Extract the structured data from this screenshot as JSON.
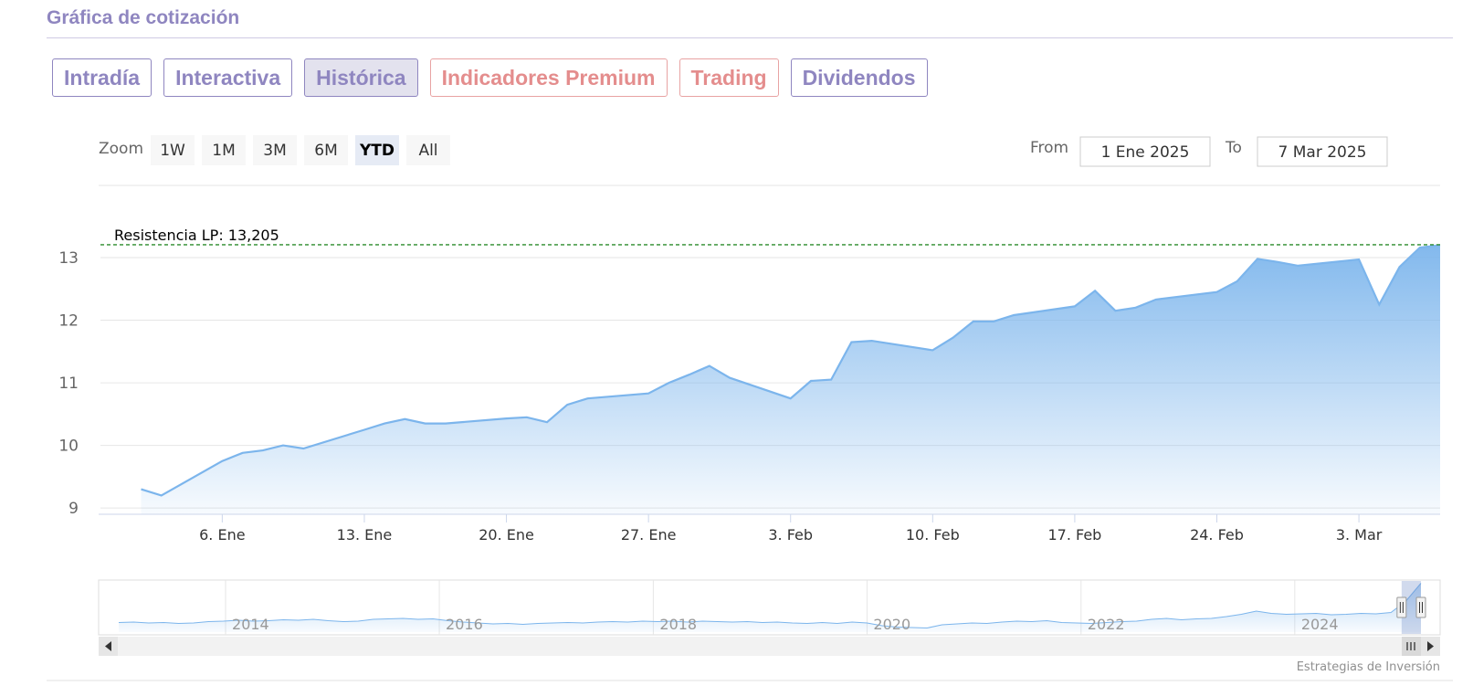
{
  "header": {
    "title": "Gráfica de cotización"
  },
  "tabs": [
    {
      "label": "Intradía",
      "state": "normal"
    },
    {
      "label": "Interactiva",
      "state": "normal"
    },
    {
      "label": "Histórica",
      "state": "active"
    },
    {
      "label": "Indicadores Premium",
      "state": "premium"
    },
    {
      "label": "Trading",
      "state": "premium"
    },
    {
      "label": "Dividendos",
      "state": "normal"
    }
  ],
  "range_selector": {
    "zoom_label": "Zoom",
    "buttons": [
      "1W",
      "1M",
      "3M",
      "6M",
      "YTD",
      "All"
    ],
    "selected": "YTD",
    "from_label": "From",
    "from_value": "1 Ene 2025",
    "to_label": "To",
    "to_value": "7 Mar 2025"
  },
  "colors": {
    "accent": "#8f86c0",
    "premium": "#e48d8d",
    "series_line": "#7cb5ec",
    "resistance_line": "#2a8a2a"
  },
  "credits": "Estrategias de Inversión",
  "chart_data": {
    "type": "area",
    "series": [
      {
        "x": [
          "2025-01-02",
          "2025-01-03",
          "2025-01-06",
          "2025-01-07",
          "2025-01-08",
          "2025-01-09",
          "2025-01-10",
          "2025-01-13",
          "2025-01-14",
          "2025-01-15",
          "2025-01-16",
          "2025-01-17",
          "2025-01-20",
          "2025-01-21",
          "2025-01-22",
          "2025-01-23",
          "2025-01-24",
          "2025-01-27",
          "2025-01-28",
          "2025-01-29",
          "2025-01-30",
          "2025-01-31",
          "2025-02-03",
          "2025-02-04",
          "2025-02-05",
          "2025-02-06",
          "2025-02-07",
          "2025-02-10",
          "2025-02-11",
          "2025-02-12",
          "2025-02-13",
          "2025-02-14",
          "2025-02-17",
          "2025-02-18",
          "2025-02-19",
          "2025-02-20",
          "2025-02-21",
          "2025-02-24",
          "2025-02-25",
          "2025-02-26",
          "2025-02-27",
          "2025-02-28",
          "2025-03-03",
          "2025-03-04",
          "2025-03-05",
          "2025-03-06",
          "2025-03-07"
        ],
        "values": [
          9.3,
          9.2,
          9.75,
          9.88,
          9.92,
          10.0,
          9.95,
          10.25,
          10.35,
          10.42,
          10.35,
          10.35,
          10.43,
          10.45,
          10.37,
          10.65,
          10.75,
          10.83,
          11.0,
          11.13,
          11.27,
          11.08,
          10.75,
          11.03,
          11.05,
          11.65,
          11.67,
          11.52,
          11.72,
          11.98,
          11.98,
          12.08,
          12.22,
          12.47,
          12.15,
          12.2,
          12.33,
          12.45,
          12.62,
          12.98,
          12.93,
          12.87,
          12.97,
          12.25,
          12.85,
          13.16,
          13.2
        ]
      }
    ],
    "y_ticks": [
      9,
      10,
      11,
      12,
      13
    ],
    "ylim": [
      8.9,
      13.35
    ],
    "x_ticks": [
      "6. Ene",
      "13. Ene",
      "20. Ene",
      "27. Ene",
      "3. Feb",
      "10. Feb",
      "17. Feb",
      "24. Feb",
      "3. Mar"
    ],
    "x_tick_dates": [
      "2025-01-06",
      "2025-01-13",
      "2025-01-20",
      "2025-01-27",
      "2025-02-03",
      "2025-02-10",
      "2025-02-17",
      "2025-02-24",
      "2025-03-03"
    ],
    "xlim": [
      "2024-12-31",
      "2025-03-07"
    ],
    "plot_line": {
      "label": "Resistencia LP: 13,205",
      "value": 13.205,
      "style": "dashed"
    },
    "navigator": {
      "year_labels": [
        "2014",
        "2016",
        "2018",
        "2020",
        "2022",
        "2024"
      ],
      "year_dates": [
        "2014-01-01",
        "2016-01-01",
        "2018-01-01",
        "2020-01-01",
        "2022-01-01",
        "2024-01-01"
      ],
      "range": [
        "2013-01-01",
        "2025-03-07"
      ],
      "values": [
        4.6,
        4.7,
        4.5,
        4.6,
        4.4,
        4.5,
        4.8,
        4.9,
        5.1,
        4.9,
        5.0,
        5.2,
        5.1,
        5.3,
        5.0,
        4.8,
        4.9,
        5.3,
        5.4,
        5.5,
        5.3,
        5.4,
        5.0,
        4.7,
        4.5,
        4.3,
        4.4,
        4.2,
        4.4,
        4.5,
        4.6,
        4.5,
        4.7,
        4.8,
        4.7,
        4.9,
        4.8,
        4.9,
        4.7,
        4.9,
        4.8,
        4.7,
        4.8,
        4.6,
        4.7,
        4.5,
        4.4,
        4.6,
        4.4,
        4.7,
        4.5,
        3.9,
        3.6,
        3.5,
        3.4,
        4.1,
        4.3,
        4.5,
        4.4,
        4.7,
        4.9,
        4.8,
        5.0,
        4.6,
        4.5,
        4.4,
        4.6,
        4.8,
        4.9,
        5.3,
        5.5,
        5.2,
        5.4,
        5.5,
        5.9,
        6.4,
        7.1,
        6.6,
        6.4,
        6.5,
        6.6,
        6.3,
        6.4,
        6.6,
        6.5,
        6.8
      ]
    }
  }
}
